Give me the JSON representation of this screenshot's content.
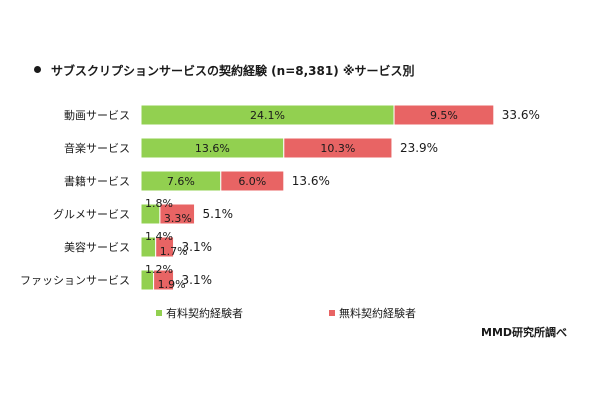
{
  "title": "サブスクリプションサービスの契約経験 (n=8,381) ※サービス別",
  "credit": "MMD研究所調べ",
  "colors": {
    "paid": "#92d050",
    "free": "#e86464"
  },
  "chart_data": {
    "type": "bar",
    "orientation": "horizontal",
    "stacked": true,
    "title": "サブスクリプションサービスの契約経験 (n=8,381) ※サービス別",
    "categories": [
      "動画サービス",
      "音楽サービス",
      "書籍サービス",
      "グルメサービス",
      "美容サービス",
      "ファッションサービス"
    ],
    "series": [
      {
        "name": "有料契約経験者",
        "values": [
          24.1,
          13.6,
          7.6,
          1.8,
          1.4,
          1.2
        ]
      },
      {
        "name": "無料契約経験者",
        "values": [
          9.5,
          10.3,
          6.0,
          3.3,
          1.7,
          1.9
        ]
      }
    ],
    "totals": [
      33.6,
      23.9,
      13.6,
      5.1,
      3.1,
      3.1
    ],
    "value_suffix": "%",
    "legend_position": "bottom",
    "grid": false
  }
}
